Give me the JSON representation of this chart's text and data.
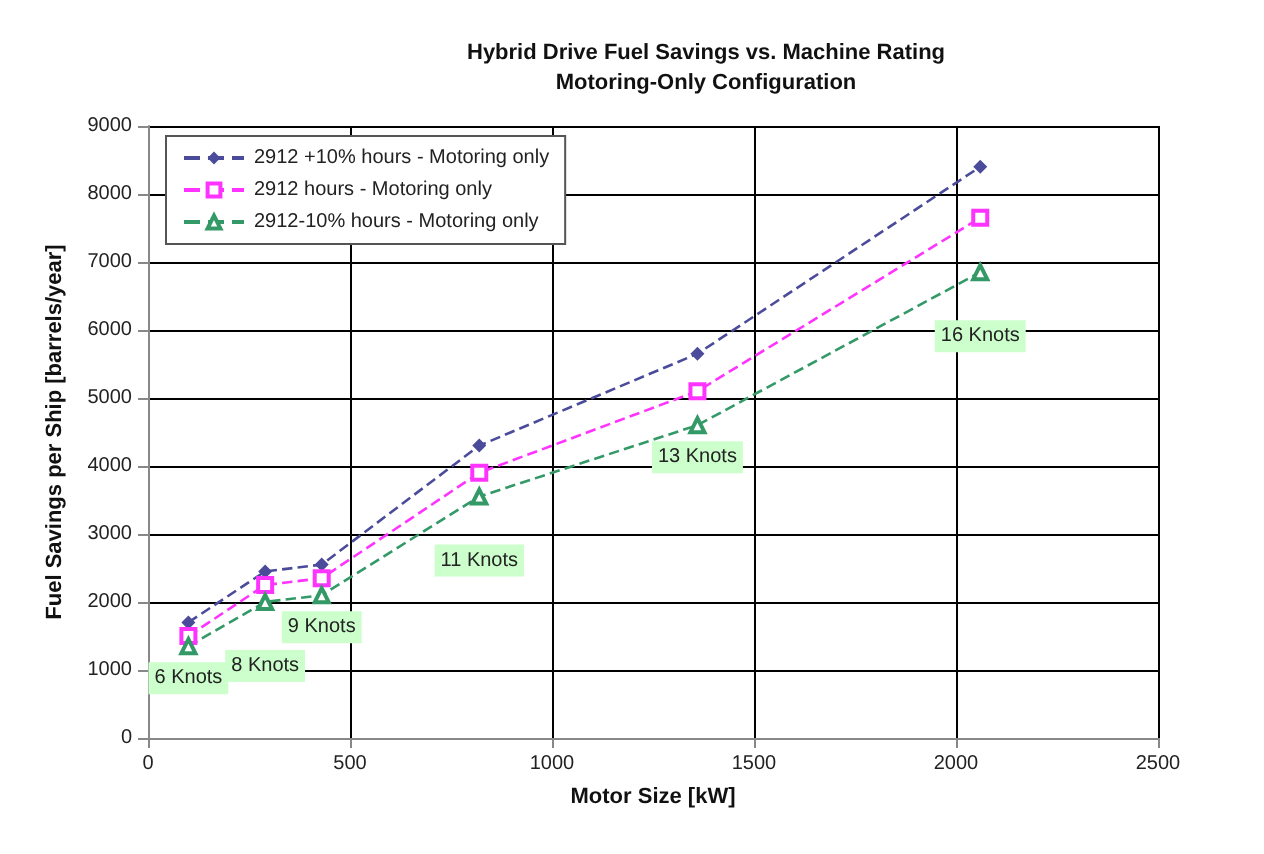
{
  "chart_data": {
    "type": "line",
    "title": "Hybrid Drive Fuel Savings vs. Machine Rating\nMotoring-Only Configuration",
    "xlabel": "Motor Size [kW]",
    "ylabel": "Fuel Savings per Ship [barrels/year]",
    "x": [
      100,
      290,
      430,
      820,
      1360,
      2060
    ],
    "series": [
      {
        "name": "2912 +10% hours - Motoring only",
        "color": "#4b4b9b",
        "marker": "diamond",
        "values": [
          1700,
          2450,
          2550,
          4300,
          5650,
          8400
        ]
      },
      {
        "name": "2912 hours - Motoring only",
        "color": "#ff33ff",
        "marker": "square",
        "values": [
          1500,
          2250,
          2350,
          3900,
          5100,
          7650
        ]
      },
      {
        "name": "2912-10% hours - Motoring only",
        "color": "#339966",
        "marker": "triangle",
        "values": [
          1350,
          2000,
          2100,
          3550,
          4600,
          6850
        ]
      }
    ],
    "annotations": [
      {
        "text": "6 Knots",
        "x": 100,
        "y": 1350
      },
      {
        "text": "8 Knots",
        "x": 290,
        "y": 2000
      },
      {
        "text": "9 Knots",
        "x": 430,
        "y": 2100
      },
      {
        "text": "11 Knots",
        "x": 820,
        "y": 3550
      },
      {
        "text": "13 Knots",
        "x": 1360,
        "y": 4600
      },
      {
        "text": "16 Knots",
        "x": 2060,
        "y": 6850
      }
    ],
    "xlim": [
      0,
      2500
    ],
    "xticks": [
      0,
      500,
      1000,
      1500,
      2000,
      2500
    ],
    "ylim": [
      0,
      9000
    ],
    "yticks": [
      0,
      1000,
      2000,
      3000,
      4000,
      5000,
      6000,
      7000,
      8000,
      9000
    ],
    "grid": true,
    "legend": "top left",
    "line_style": "dashed"
  }
}
